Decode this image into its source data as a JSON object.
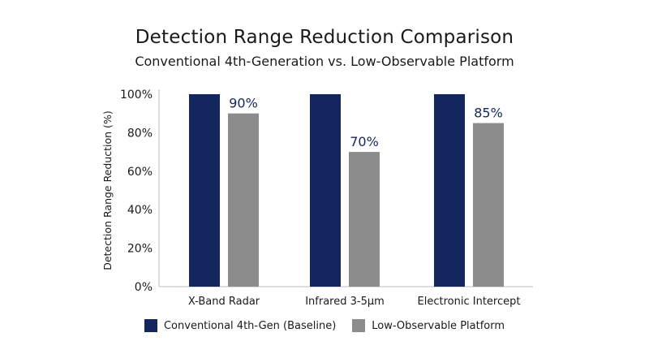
{
  "colors": {
    "baseline": "#13265e",
    "low_observable": "#8c8c8c",
    "axis": "#bdbdbd",
    "label": "#13265e"
  },
  "chart_data": {
    "type": "bar",
    "title": "Detection Range Reduction Comparison",
    "subtitle": "Conventional 4th-Generation vs. Low-Observable Platform",
    "ylabel": "Detection Range Reduction (%)",
    "xlabel": "",
    "ylim": [
      0,
      100
    ],
    "yticks": [
      0,
      20,
      40,
      60,
      80,
      100
    ],
    "ytick_labels": [
      "0%",
      "20%",
      "40%",
      "60%",
      "80%",
      "100%"
    ],
    "categories": [
      "X-Band Radar",
      "Infrared 3-5μm",
      "Electronic Intercept"
    ],
    "series": [
      {
        "name": "Conventional 4th-Gen (Baseline)",
        "values": [
          100,
          100,
          100
        ]
      },
      {
        "name": "Low-Observable Platform",
        "values": [
          90,
          70,
          85
        ]
      }
    ],
    "data_labels": [
      "90%",
      "70%",
      "85%"
    ],
    "grid": false,
    "legend_position": "bottom"
  }
}
